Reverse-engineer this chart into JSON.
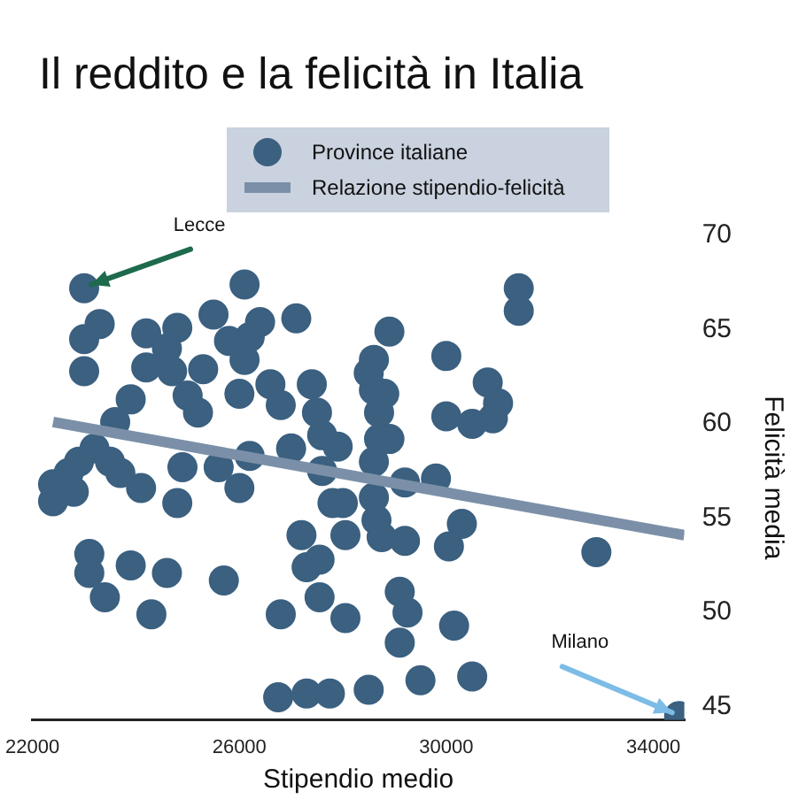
{
  "chart_data": {
    "type": "scatter",
    "title": "Il reddito e la felicità in Italia",
    "xlabel": "Stipendio medio",
    "ylabel": "Felicità media",
    "xlim": [
      22000,
      34600
    ],
    "xticks": [
      22000,
      26000,
      30000,
      34000
    ],
    "ylim": [
      44.3,
      70
    ],
    "yticks": [
      45,
      50,
      55,
      60,
      65,
      70
    ],
    "grid": false,
    "legend": "top",
    "annotations": [
      {
        "text": "Lecce",
        "x": 23000,
        "y": 67.2
      },
      {
        "text": "Milano",
        "x": 34500,
        "y": 44.5
      }
    ],
    "series": [
      {
        "name": "Province italiane",
        "marker": "circle",
        "color": "#3b6080",
        "x": [
          23000,
          26100,
          23300,
          23000,
          24200,
          24800,
          24600,
          24200,
          24700,
          23000,
          25500,
          26400,
          25800,
          26200,
          26100,
          25300,
          25000,
          25200,
          26000,
          26600,
          26800,
          27100,
          27400,
          27500,
          27600,
          27900,
          23900,
          23600,
          23200,
          22900,
          22700,
          22400,
          23500,
          23700,
          24100,
          24900,
          24800,
          25600,
          26000,
          26200,
          27000,
          27600,
          27800,
          28600,
          28900,
          28600,
          28700,
          28700,
          28600,
          28600,
          29200,
          31400,
          31400,
          28500,
          28800,
          30000,
          30800,
          31000,
          30900,
          30000,
          30500,
          28900,
          29800,
          28000,
          22400,
          22800,
          23100,
          23100,
          23400,
          23900,
          24300,
          24600,
          25700,
          26800,
          27200,
          27300,
          27550,
          27550,
          28050,
          28050,
          28650,
          28750,
          29200,
          29100,
          29250,
          29100,
          26750,
          27300,
          27750,
          28500,
          30300,
          30050,
          32900,
          30150,
          29500,
          30500,
          34500
        ],
        "values": [
          67.2,
          67.4,
          65.3,
          64.5,
          64.8,
          65.1,
          64.0,
          63.0,
          62.8,
          62.8,
          65.8,
          65.4,
          64.4,
          64.6,
          63.4,
          62.9,
          61.5,
          60.6,
          61.6,
          62.1,
          61.0,
          65.6,
          62.1,
          60.6,
          59.4,
          58.8,
          61.3,
          60.1,
          58.7,
          58.0,
          57.4,
          56.8,
          58.0,
          57.4,
          56.6,
          57.7,
          55.8,
          57.7,
          56.6,
          58.3,
          58.7,
          57.5,
          55.8,
          63.4,
          64.9,
          61.8,
          60.6,
          59.2,
          58.0,
          56.1,
          56.9,
          67.2,
          66.0,
          62.7,
          61.6,
          63.6,
          62.2,
          61.1,
          60.3,
          60.4,
          60.0,
          59.2,
          57.1,
          55.8,
          55.9,
          56.4,
          53.1,
          52.1,
          50.8,
          52.5,
          49.9,
          52.1,
          51.7,
          49.9,
          54.1,
          52.4,
          52.8,
          50.8,
          49.7,
          54.1,
          54.9,
          54.0,
          53.8,
          51.1,
          50.0,
          48.4,
          45.5,
          45.7,
          45.7,
          45.9,
          54.7,
          53.5,
          53.2,
          49.3,
          46.4,
          46.6,
          44.5
        ]
      },
      {
        "name": "Relazione stipendio-felicità",
        "type": "line",
        "marker": "none",
        "color": "#7b90a8",
        "x": [
          22400,
          34600
        ],
        "values": [
          60.1,
          54.1
        ]
      }
    ]
  }
}
